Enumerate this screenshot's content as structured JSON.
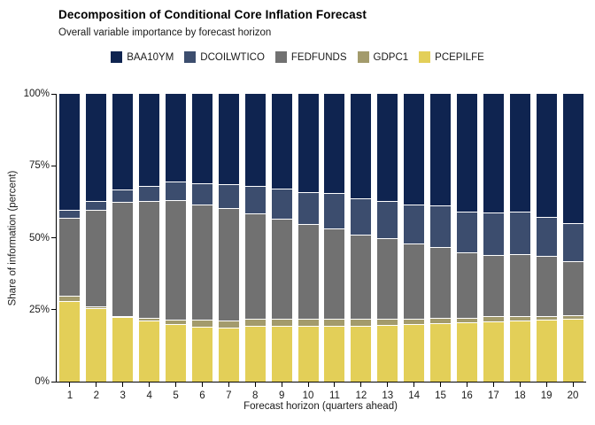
{
  "chart_data": {
    "type": "bar",
    "stacked": true,
    "title": "Decomposition of Conditional Core Inflation Forecast",
    "subtitle": "Overall variable importance by forecast horizon",
    "xlabel": "Forecast horizon (quarters ahead)",
    "ylabel": "Share of information (percent)",
    "ylim": [
      0,
      100
    ],
    "grid": false,
    "legend_position": "top",
    "yticks": [
      "0%",
      "25%",
      "50%",
      "75%",
      "100%"
    ],
    "ytick_values": [
      0,
      25,
      50,
      75,
      100
    ],
    "categories": [
      "1",
      "2",
      "3",
      "4",
      "5",
      "6",
      "7",
      "8",
      "9",
      "10",
      "11",
      "12",
      "13",
      "14",
      "15",
      "16",
      "17",
      "18",
      "19",
      "20"
    ],
    "legend": [
      {
        "name": "BAA10YM",
        "color": "#0f2450"
      },
      {
        "name": "DCOILWTICO",
        "color": "#3c4d6e"
      },
      {
        "name": "FEDFUNDS",
        "color": "#717171"
      },
      {
        "name": "GDPC1",
        "color": "#a39b6c"
      },
      {
        "name": "PCEPILFE",
        "color": "#e3cf58"
      }
    ],
    "series": [
      {
        "name": "PCEPILFE",
        "color": "#e3cf58",
        "values": [
          27.9,
          25.5,
          22.5,
          21.1,
          19.9,
          19.1,
          18.9,
          19.4,
          19.4,
          19.4,
          19.4,
          19.4,
          19.7,
          19.9,
          20.4,
          20.7,
          21.0,
          21.3,
          21.5,
          21.7
        ]
      },
      {
        "name": "GDPC1",
        "color": "#a39b6c",
        "values": [
          1.9,
          0.7,
          0.3,
          1.2,
          1.6,
          2.4,
          2.2,
          2.4,
          2.4,
          2.4,
          2.4,
          2.4,
          2.1,
          1.9,
          1.9,
          1.6,
          1.7,
          1.4,
          1.2,
          1.3
        ]
      },
      {
        "name": "FEDFUNDS",
        "color": "#717171",
        "values": [
          27.1,
          33.6,
          39.6,
          40.6,
          41.6,
          40.0,
          39.1,
          36.6,
          34.8,
          33.1,
          31.5,
          29.4,
          28.1,
          26.1,
          24.5,
          22.5,
          21.4,
          21.6,
          20.9,
          19.0
        ]
      },
      {
        "name": "DCOILWTICO",
        "color": "#3c4d6e",
        "values": [
          2.8,
          2.9,
          4.4,
          5.0,
          6.3,
          7.5,
          8.5,
          9.5,
          10.4,
          10.9,
          12.3,
          12.4,
          12.8,
          13.6,
          14.4,
          14.4,
          14.6,
          14.7,
          13.6,
          13.0
        ]
      },
      {
        "name": "BAA10YM",
        "color": "#0f2450",
        "values": [
          40.3,
          37.3,
          33.2,
          32.1,
          30.6,
          31.0,
          31.3,
          32.1,
          33.0,
          34.2,
          34.4,
          36.4,
          37.3,
          38.5,
          38.8,
          40.8,
          41.3,
          41.0,
          42.8,
          45.0
        ]
      }
    ]
  }
}
